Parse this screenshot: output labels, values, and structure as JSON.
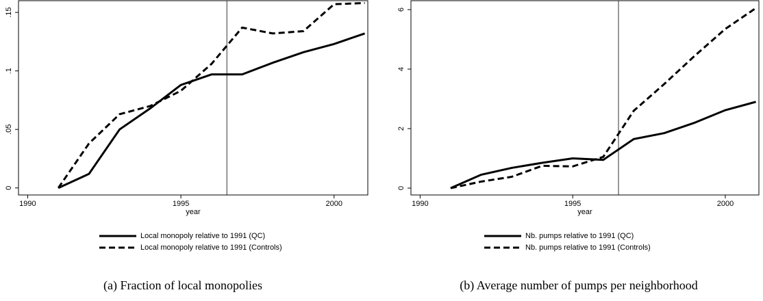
{
  "chart_data": [
    {
      "type": "line",
      "caption": "(a)  Fraction of local monopolies",
      "xlabel": "year",
      "x": [
        1991,
        1992,
        1993,
        1994,
        1995,
        1996,
        1997,
        1998,
        1999,
        2000,
        2001
      ],
      "series": [
        {
          "name": "Local monopoly relative to 1991 (QC)",
          "color": "#000000",
          "style": "solid",
          "values": [
            0,
            0.012,
            0.05,
            0.068,
            0.088,
            0.097,
            0.097,
            0.107,
            0.116,
            0.123,
            0.132
          ]
        },
        {
          "name": "Local monopoly relative to 1991 (Controls)",
          "color": "#000000",
          "style": "dashed",
          "values": [
            0,
            0.038,
            0.063,
            0.07,
            0.083,
            0.106,
            0.137,
            0.132,
            0.134,
            0.157,
            0.158
          ]
        }
      ],
      "xlim": [
        1989.7,
        2001.1
      ],
      "xticks": [
        1990,
        1995,
        2000
      ],
      "ylim": [
        -0.006,
        0.16
      ],
      "yticks": [
        0,
        {
          "value": 0.05,
          "label": ".05"
        },
        {
          "value": 0.1,
          "label": ".1"
        },
        {
          "value": 0.15,
          "label": ".15"
        }
      ],
      "vline": 1996.5
    },
    {
      "type": "line",
      "caption": "(b)  Average number of pumps per neighborhood",
      "xlabel": "year",
      "x": [
        1991,
        1992,
        1993,
        1994,
        1995,
        1996,
        1997,
        1998,
        1999,
        2000,
        2001
      ],
      "series": [
        {
          "name": "Nb. pumps relative to 1991 (QC)",
          "color": "#000000",
          "style": "solid",
          "values": [
            0,
            0.45,
            0.68,
            0.85,
            1.0,
            0.95,
            1.65,
            1.85,
            2.2,
            2.62,
            2.9
          ]
        },
        {
          "name": "Nb. pumps relative to 1991 (Controls)",
          "color": "#000000",
          "style": "dashed",
          "values": [
            0,
            0.22,
            0.38,
            0.75,
            0.73,
            1.05,
            2.6,
            3.5,
            4.45,
            5.35,
            6.05
          ]
        }
      ],
      "xlim": [
        1989.7,
        2001.1
      ],
      "xticks": [
        1990,
        1995,
        2000
      ],
      "ylim": [
        -0.23,
        6.3
      ],
      "yticks": [
        0,
        2,
        4,
        6
      ],
      "vline": 1996.5
    }
  ]
}
